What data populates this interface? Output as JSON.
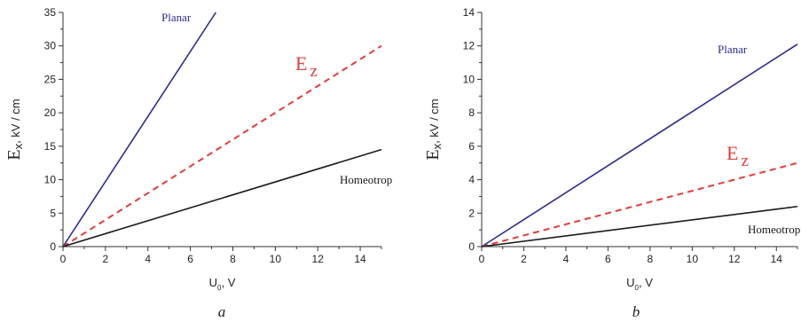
{
  "chart_data": [
    {
      "type": "line",
      "panel_label": "a",
      "xlabel": {
        "main": "U",
        "sub": "0",
        "rest": ", V"
      },
      "ylabel": {
        "main": "E",
        "sub": "x",
        "rest": ",  kV / cm"
      },
      "xlim": [
        0,
        15
      ],
      "ylim": [
        0,
        35
      ],
      "xticks": [
        0,
        2,
        4,
        6,
        8,
        10,
        12,
        14
      ],
      "yticks": [
        0,
        5,
        10,
        15,
        20,
        25,
        30,
        35
      ],
      "series": [
        {
          "name": "Planar",
          "style": "solid",
          "color": "#2b2b8f",
          "x": [
            0,
            7.2
          ],
          "y": [
            0,
            35
          ]
        },
        {
          "name": "E",
          "name_sub": "z",
          "style": "dashed",
          "color": "#e23b3b",
          "x": [
            0,
            15
          ],
          "y": [
            0,
            30
          ]
        },
        {
          "name": "Homeotrop",
          "style": "solid",
          "color": "#1a1a1a",
          "x": [
            0,
            15
          ],
          "y": [
            0,
            14.5
          ]
        }
      ]
    },
    {
      "type": "line",
      "panel_label": "b",
      "xlabel": {
        "main": "U",
        "sub": "0",
        "rest": ", V"
      },
      "ylabel": {
        "main": "E",
        "sub": "x",
        "rest": ",  kV / cm"
      },
      "xlim": [
        0,
        15
      ],
      "ylim": [
        0,
        14
      ],
      "xticks": [
        0,
        2,
        4,
        6,
        8,
        10,
        12,
        14
      ],
      "yticks": [
        0,
        2,
        4,
        6,
        8,
        10,
        12,
        14
      ],
      "series": [
        {
          "name": "Planar",
          "style": "solid",
          "color": "#2b2b8f",
          "x": [
            0,
            15
          ],
          "y": [
            0,
            12.1
          ]
        },
        {
          "name": "E",
          "name_sub": "z",
          "style": "dashed",
          "color": "#e23b3b",
          "x": [
            0,
            15
          ],
          "y": [
            0,
            5
          ]
        },
        {
          "name": "Homeotrop",
          "style": "solid",
          "color": "#1a1a1a",
          "x": [
            0,
            15
          ],
          "y": [
            0,
            2.4
          ]
        }
      ]
    }
  ]
}
